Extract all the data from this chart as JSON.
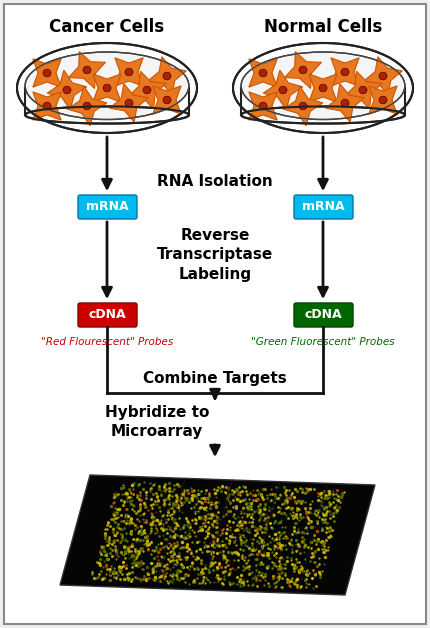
{
  "bg_color": "#f0f0f0",
  "border_color": "#888888",
  "cancer_label": "Cancer Cells",
  "normal_label": "Normal Cells",
  "rna_label": "RNA Isolation",
  "mrna_label": "mRNA",
  "mrna_color": "#00bbee",
  "rt_label": "Reverse\nTranscriptase\nLabeling",
  "cdna_label": "cDNA",
  "red_cdna_color": "#cc0000",
  "green_cdna_color": "#006600",
  "red_probe_label": "\"Red Flourescent\" Probes",
  "green_probe_label": "\"Green Fluorescent\" Probes",
  "combine_label": "Combine Targets",
  "hybridize_label": "Hybridize to\nMicroarray",
  "arrow_color": "#111111",
  "cell_fill": "#e87820",
  "cell_light": "#f8a050",
  "cell_dark": "#aa2200",
  "cell_edge": "#cc5500"
}
